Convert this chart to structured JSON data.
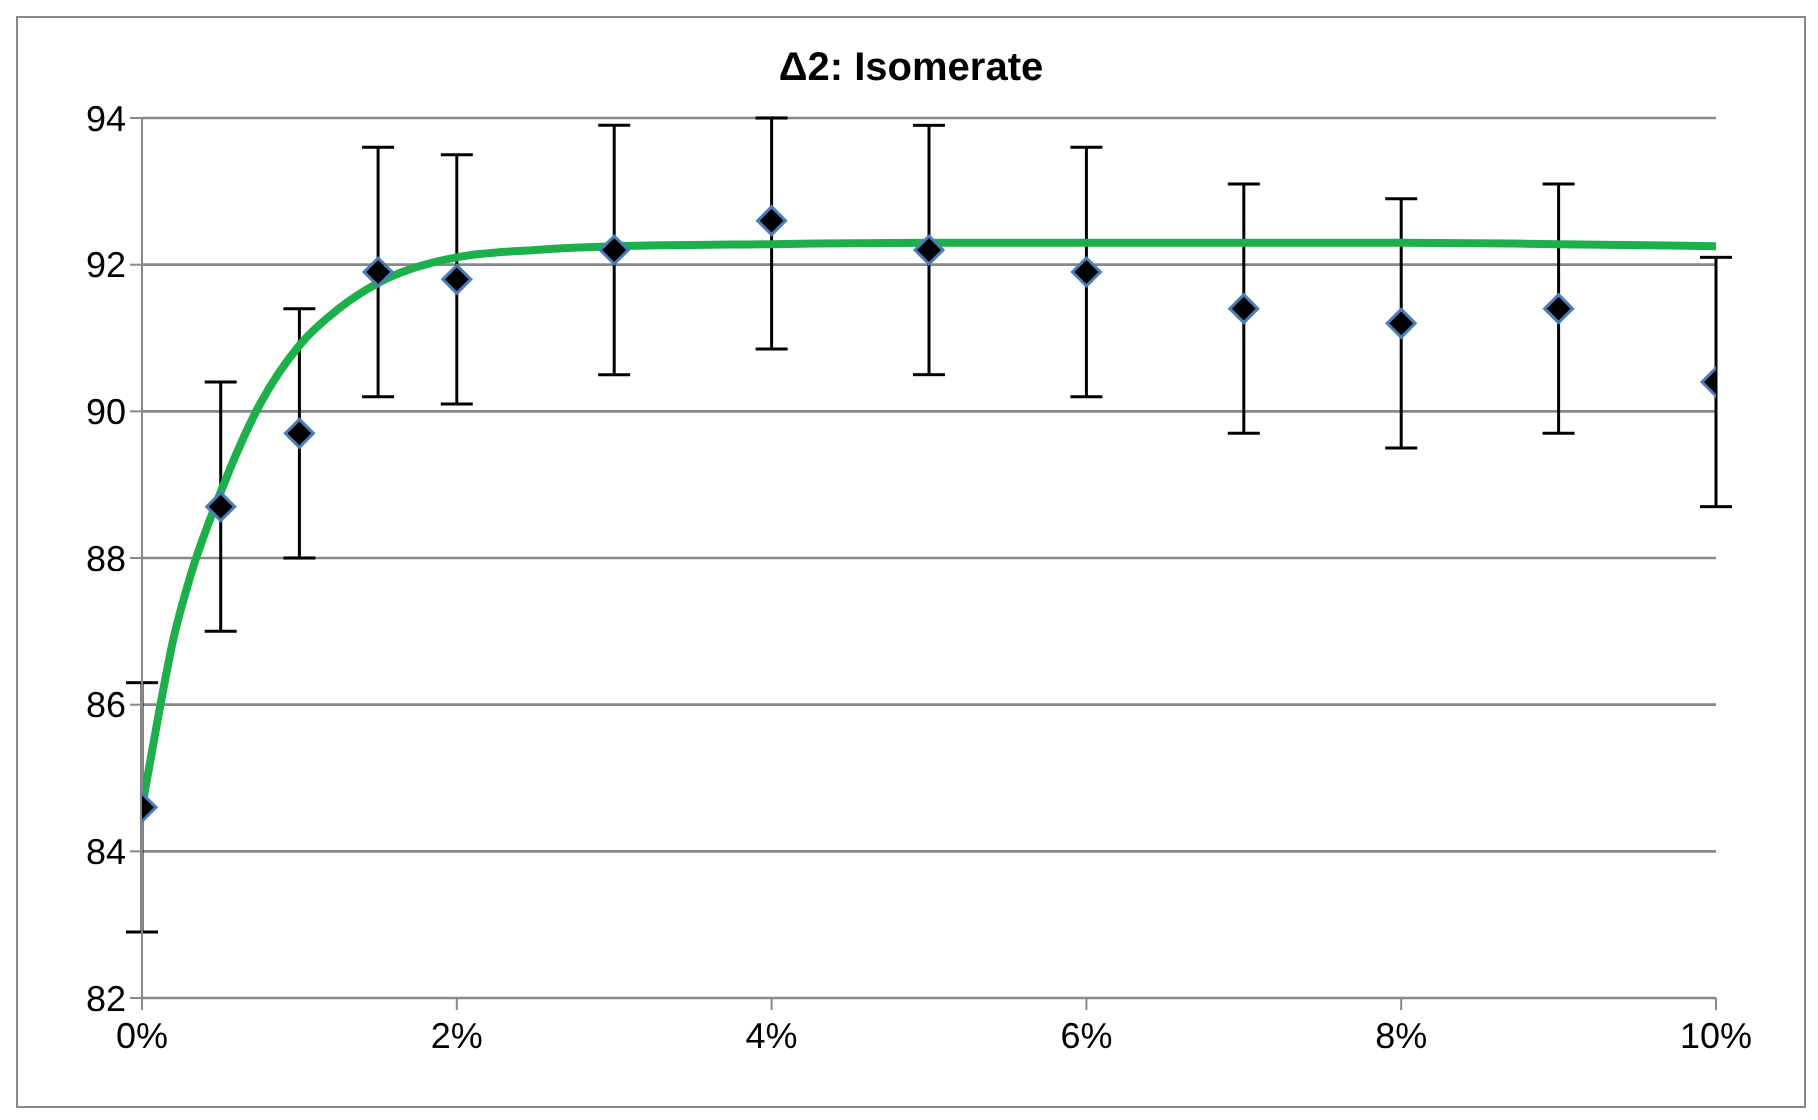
{
  "chart_data": {
    "type": "scatter",
    "title": "Δ2: Isomerate",
    "xlim": [
      0,
      10
    ],
    "xticks": [
      {
        "value": 0,
        "label": "0%"
      },
      {
        "value": 2,
        "label": "2%"
      },
      {
        "value": 4,
        "label": "4%"
      },
      {
        "value": 6,
        "label": "6%"
      },
      {
        "value": 8,
        "label": "8%"
      },
      {
        "value": 10,
        "label": "10%"
      }
    ],
    "ylim": [
      82,
      94
    ],
    "yticks": [
      82,
      84,
      86,
      88,
      90,
      92,
      94
    ],
    "grid": "y",
    "marker": "diamond",
    "series": [
      {
        "color": "#000000",
        "x": [
          0,
          0.5,
          1,
          1.5,
          2,
          3,
          4,
          5,
          6,
          7,
          8,
          9,
          10
        ],
        "values": [
          84.6,
          88.7,
          89.7,
          91.9,
          91.8,
          92.2,
          92.6,
          92.2,
          91.9,
          91.4,
          91.2,
          91.4,
          90.4
        ],
        "errors": [
          1.7,
          1.7,
          1.7,
          1.7,
          1.7,
          1.7,
          [
            90.85,
            94
          ],
          1.7,
          1.7,
          1.7,
          1.7,
          1.7,
          1.7
        ]
      },
      {
        "type": "line",
        "color": "#1db04a",
        "marker": "none",
        "x": [
          0,
          0.1,
          0.2,
          0.3,
          0.5,
          0.75,
          1,
          1.25,
          1.5,
          2,
          2.5,
          3,
          4,
          5,
          6,
          7,
          8,
          9,
          10
        ],
        "values": [
          84.6,
          85.8,
          86.9,
          87.7,
          88.9,
          90.1,
          90.9,
          91.4,
          91.75,
          92.1,
          92.2,
          92.25,
          92.28,
          92.3,
          92.3,
          92.3,
          92.3,
          92.28,
          92.25
        ]
      }
    ]
  }
}
